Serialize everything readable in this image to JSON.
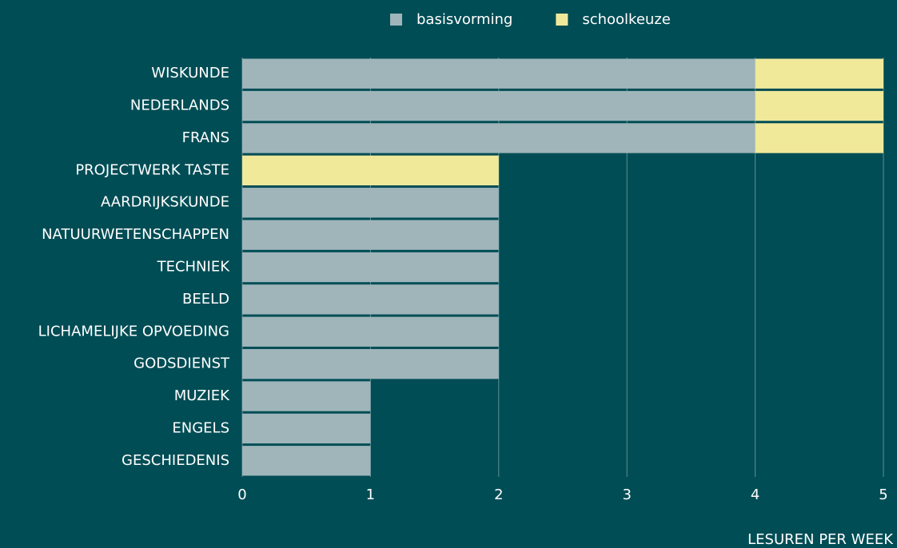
{
  "chart_data": {
    "type": "stacked-bar-horizontal",
    "categories": [
      "WISKUNDE",
      "NEDERLANDS",
      "FRANS",
      "PROJECTWERK TASTE",
      "AARDRIJKSKUNDE",
      "NATUURWETENSCHAPPEN",
      "TECHNIEK",
      "BEELD",
      "LICHAMELIJKE OPVOEDING",
      "GODSDIENST",
      "MUZIEK",
      "ENGELS",
      "GESCHIEDENIS"
    ],
    "series": [
      {
        "name": "basisvorming",
        "color": "#9fb5ba",
        "values": [
          4,
          4,
          4,
          0,
          2,
          2,
          2,
          2,
          2,
          2,
          1,
          1,
          1
        ]
      },
      {
        "name": "schoolkeuze",
        "color": "#f0e99a",
        "values": [
          1,
          1,
          1,
          2,
          0,
          0,
          0,
          0,
          0,
          0,
          0,
          0,
          0
        ]
      }
    ],
    "xlabel": "LESUREN PER WEEK",
    "xlim": [
      0,
      5
    ],
    "xticks": [
      0,
      1,
      2,
      3,
      4,
      5
    ],
    "grid": true,
    "legend": "top"
  }
}
